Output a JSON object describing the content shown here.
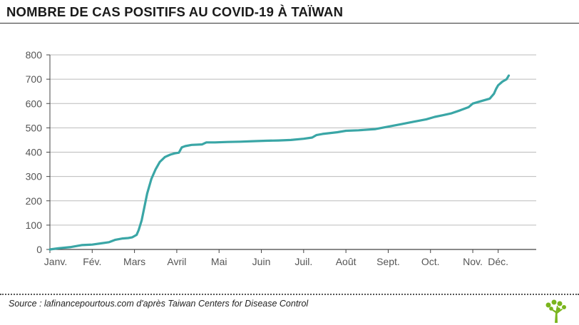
{
  "header": {
    "title": "NOMBRE DE CAS POSITIFS AU COVID-19 À TAÏWAN"
  },
  "footer": {
    "source": "Source : lafinancepourtous.com d'après Taiwan Centers for Disease Control"
  },
  "logo": {
    "icon": "tree-logo-icon",
    "color": "#7ab51d"
  },
  "colors": {
    "line": "#3aa6a6",
    "axis": "#444444",
    "grid": "#bbbbbb",
    "text": "#555555"
  },
  "chart_data": {
    "type": "line",
    "title": "NOMBRE DE CAS POSITIFS AU COVID-19 À TAÏWAN",
    "xlabel": "",
    "ylabel": "",
    "ylim": [
      0,
      800
    ],
    "yticks": [
      0,
      100,
      200,
      300,
      400,
      500,
      600,
      700,
      800
    ],
    "xlim": [
      0,
      11.5
    ],
    "xticks": [
      {
        "label": "Janv.",
        "x": 0
      },
      {
        "label": "Fév.",
        "x": 1
      },
      {
        "label": "Mars",
        "x": 2
      },
      {
        "label": "Avril",
        "x": 3
      },
      {
        "label": "Mai",
        "x": 4
      },
      {
        "label": "Juin",
        "x": 5
      },
      {
        "label": "Juil.",
        "x": 6
      },
      {
        "label": "Août",
        "x": 7
      },
      {
        "label": "Sept.",
        "x": 8
      },
      {
        "label": "Oct.",
        "x": 9
      },
      {
        "label": "Nov.",
        "x": 10
      },
      {
        "label": "Déc.",
        "x": 10.6
      }
    ],
    "grid": "horizontal",
    "series": [
      {
        "name": "",
        "x": [
          0,
          0.2,
          0.5,
          0.75,
          1.0,
          1.2,
          1.4,
          1.55,
          1.72,
          1.85,
          1.95,
          2.05,
          2.1,
          2.17,
          2.23,
          2.3,
          2.4,
          2.5,
          2.6,
          2.72,
          2.85,
          2.95,
          3.05,
          3.12,
          3.2,
          3.35,
          3.6,
          3.7,
          3.9,
          4.2,
          4.5,
          4.8,
          5.1,
          5.4,
          5.7,
          6.0,
          6.2,
          6.3,
          6.45,
          6.6,
          6.8,
          7.0,
          7.3,
          7.7,
          8.0,
          8.3,
          8.6,
          8.9,
          9.1,
          9.3,
          9.5,
          9.7,
          9.9,
          10.0,
          10.2,
          10.4,
          10.5,
          10.55,
          10.6,
          10.7,
          10.8,
          10.85
        ],
        "values": [
          0,
          5,
          10,
          18,
          20,
          25,
          30,
          40,
          45,
          47,
          50,
          60,
          80,
          120,
          170,
          230,
          290,
          330,
          360,
          380,
          390,
          395,
          398,
          420,
          425,
          430,
          432,
          440,
          440,
          442,
          443,
          445,
          447,
          448,
          450,
          455,
          460,
          470,
          475,
          478,
          482,
          488,
          490,
          495,
          505,
          515,
          525,
          535,
          545,
          552,
          560,
          572,
          585,
          600,
          610,
          620,
          640,
          660,
          675,
          690,
          700,
          715
        ]
      }
    ]
  }
}
